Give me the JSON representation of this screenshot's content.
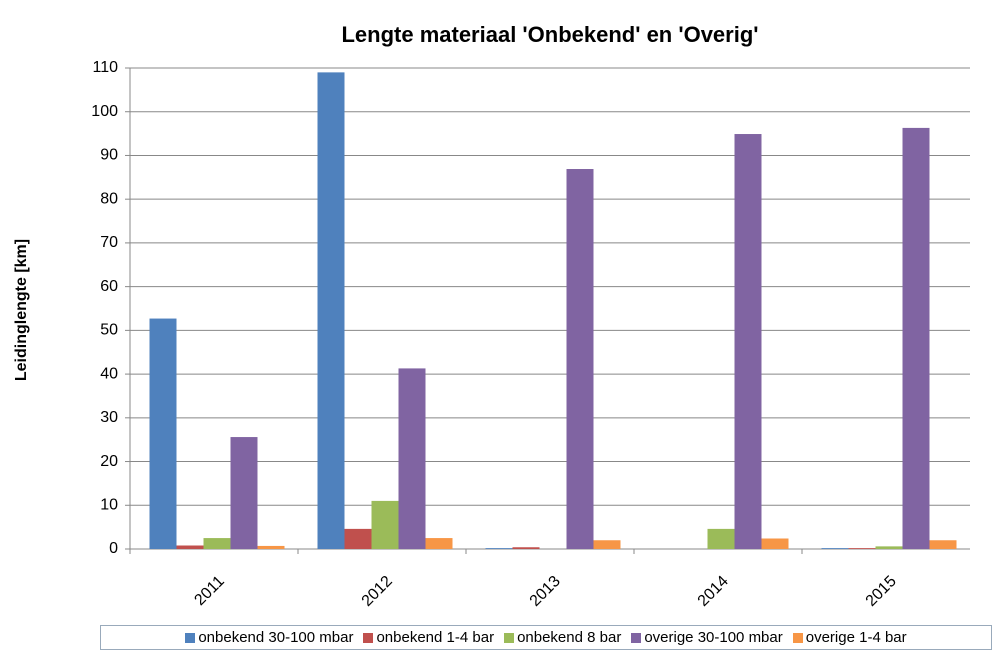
{
  "chart_data": {
    "type": "bar",
    "title": "Lengte materiaal 'Onbekend' en 'Overig'",
    "y_label": "Leidinglengte [km]",
    "categories": [
      "2011",
      "2012",
      "2013",
      "2014",
      "2015"
    ],
    "series": [
      {
        "name": "onbekend 30-100 mbar",
        "color": "#4f81bd",
        "values": [
          52.7,
          109,
          0.2,
          0,
          0.2
        ]
      },
      {
        "name": "onbekend 1-4 bar",
        "color": "#c0504d",
        "values": [
          0.8,
          4.6,
          0.4,
          0,
          0.2
        ]
      },
      {
        "name": "onbekend 8 bar",
        "color": "#9bbb59",
        "values": [
          2.5,
          11,
          0,
          4.6,
          0.6
        ]
      },
      {
        "name": "overige 30-100 mbar",
        "color": "#8064a2",
        "values": [
          25.6,
          41.3,
          86.9,
          94.9,
          96.3
        ]
      },
      {
        "name": "overige 1-4 bar",
        "color": "#f79646",
        "values": [
          0.7,
          2.5,
          2,
          2.4,
          2
        ]
      }
    ],
    "ylim": [
      0,
      110
    ],
    "yticks": [
      0,
      10,
      20,
      30,
      40,
      50,
      60,
      70,
      80,
      90,
      100,
      110
    ],
    "grid": true
  }
}
